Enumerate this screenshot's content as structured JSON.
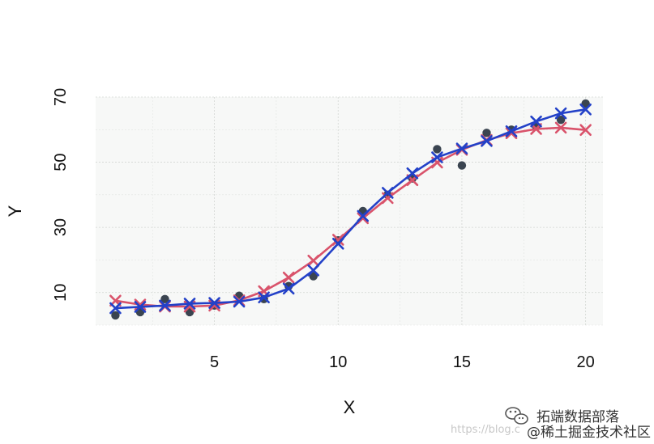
{
  "chart_data": {
    "type": "scatter",
    "title": "",
    "xlabel": "X",
    "ylabel": "Y",
    "xlim": [
      0.2,
      20.7
    ],
    "ylim": [
      0,
      70
    ],
    "x_ticks": [
      5,
      10,
      15,
      20
    ],
    "y_ticks": [
      10,
      30,
      50,
      70
    ],
    "grid": true,
    "background": "#f7f8f7",
    "points": {
      "x": [
        1,
        2,
        3,
        4,
        5,
        6,
        7,
        8,
        9,
        10,
        11,
        12,
        13,
        14,
        15,
        16,
        17,
        18,
        19,
        20
      ],
      "y": [
        3,
        4,
        8,
        4,
        6,
        9,
        8,
        12,
        15,
        26,
        35,
        40,
        45,
        54,
        49,
        59,
        60,
        61,
        63,
        68
      ],
      "color": "#3a4450"
    },
    "series": [
      {
        "color": "#d9536b",
        "x": [
          1,
          2,
          3,
          4,
          5,
          6,
          7,
          8,
          9,
          10,
          11,
          12,
          13,
          14,
          15,
          16,
          17,
          18,
          19,
          20
        ],
        "values": [
          7.5,
          6.3,
          5.7,
          5.7,
          6.0,
          7.6,
          10.4,
          14.6,
          19.8,
          26.2,
          32.8,
          39.0,
          44.5,
          49.9,
          53.8,
          56.8,
          58.9,
          60.2,
          60.6,
          59.9
        ]
      },
      {
        "color": "#2341c8",
        "x": [
          1,
          2,
          3,
          4,
          5,
          6,
          7,
          8,
          9,
          10,
          11,
          12,
          13,
          14,
          15,
          16,
          17,
          18,
          19,
          20
        ],
        "values": [
          5.2,
          5.6,
          6.0,
          6.6,
          6.8,
          7.2,
          8.5,
          11.2,
          16.8,
          25.0,
          33.5,
          40.6,
          46.6,
          51.5,
          54.2,
          56.5,
          59.5,
          62.5,
          65.0,
          66.2
        ]
      }
    ]
  },
  "watermark": {
    "brand": "拓端数据部落",
    "community": "@稀土掘金技术社区",
    "url": "https://blog.c"
  }
}
